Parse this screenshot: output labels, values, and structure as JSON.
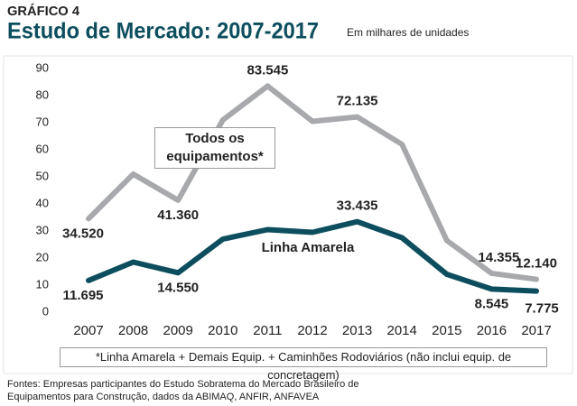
{
  "chart_data": {
    "type": "line",
    "supertitle": "GRÁFICO 4",
    "title": "Estudo de Mercado: 2007-2017",
    "subtitle": "Em milhares de unidades",
    "categories": [
      "2007",
      "2008",
      "2009",
      "2010",
      "2011",
      "2012",
      "2013",
      "2014",
      "2015",
      "2016",
      "2017"
    ],
    "series": [
      {
        "name": "Todos os equipamentos*",
        "color": "#a7a9ac",
        "values": [
          34.52,
          51,
          41.36,
          71,
          83.545,
          70.5,
          72.135,
          62,
          26.5,
          14.355,
          12.14
        ],
        "value_labels": [
          "34.520",
          null,
          "41.360",
          null,
          "83.545",
          null,
          "72.135",
          null,
          null,
          "14.355",
          "12.140"
        ]
      },
      {
        "name": "Linha Amarela",
        "color": "#0d4e5e",
        "values": [
          11.695,
          18.5,
          14.55,
          27,
          30.5,
          29.5,
          33.435,
          27.5,
          14,
          8.545,
          7.775
        ],
        "value_labels": [
          "11.695",
          null,
          "14.550",
          null,
          null,
          null,
          "33.435",
          null,
          null,
          "8.545",
          "7.775"
        ]
      }
    ],
    "ylim": [
      0,
      90
    ],
    "yticks": [
      0,
      10,
      20,
      30,
      40,
      50,
      60,
      70,
      80,
      90
    ],
    "grid": false,
    "footnote": "*Linha Amarela + Demais Equip. + Caminhões Rodoviários (não inclui equip. de concretagem)",
    "source": [
      "Fontes: Empresas participantes do Estudo Sobratema do Mercado Brasileiro de",
      "Equipamentos para Construção, dados da ABIMAQ, ANFIR, ANFAVEA"
    ]
  }
}
